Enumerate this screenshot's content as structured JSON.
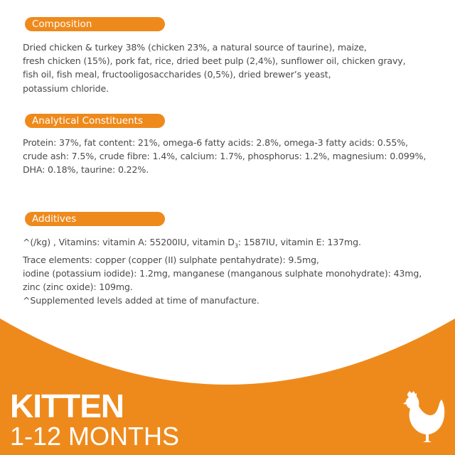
{
  "colors": {
    "accent": "#ee8a1c",
    "text": "#4a4a4a"
  },
  "composition": {
    "title": "Composition",
    "lines": [
      "Dried chicken & turkey 38% (chicken 23%, a natural source of taurine), maize,",
      "fresh chicken (15%), pork fat, rice, dried beet pulp (2,4%), sunflower oil, chicken gravy,",
      "fish oil, fish meal, fructooligosaccharides (0,5%), dried brewer’s yeast,",
      "potassium chloride."
    ]
  },
  "analytical": {
    "title": "Analytical Constituents",
    "lines": [
      "Protein: 37%, fat content: 21%, omega-6 fatty acids: 2.8%, omega-3 fatty acids: 0.55%,",
      "crude ash: 7.5%, crude fibre: 1.4%, calcium: 1.7%, phosphorus: 1.2%, magnesium: 0.099%,",
      "DHA: 0.18%, taurine: 0.22%."
    ]
  },
  "additives": {
    "title": "Additives",
    "line1_a": "^(/kg) , Vitamins: vitamin A: 55200IU, vitamin D",
    "line1_sub": "3",
    "line1_b": ": 1587IU, vitamin E: 137mg.",
    "lines": [
      "Trace elements: copper (copper (II) sulphate pentahydrate): 9.5mg,",
      "iodine (potassium iodide): 1.2mg, manganese (manganous sulphate monohydrate): 43mg,",
      "zinc (zinc oxide): 109mg.",
      "^Supplemented levels added at time of manufacture."
    ]
  },
  "footer": {
    "title": "KITTEN",
    "subtitle": "1-12 MONTHS",
    "icon": "chicken-icon"
  }
}
